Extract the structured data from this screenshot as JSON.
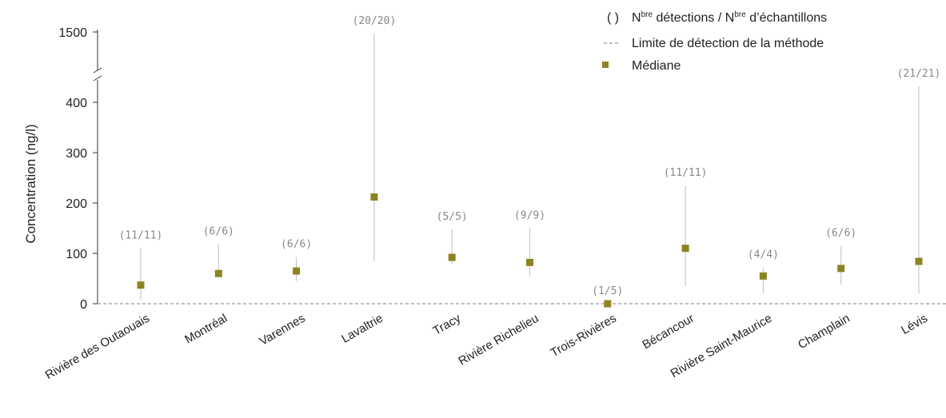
{
  "chart_data": {
    "type": "scatter",
    "ylabel": "Concentration (ng/l)",
    "yticks": [
      0,
      100,
      200,
      300,
      400,
      1500
    ],
    "y_axis_break": [
      400,
      1500
    ],
    "detection_limit": 0,
    "legend": {
      "paren_symbol": "( )",
      "entry_counts": {
        "n1": "N",
        "sup1": "bre",
        "mid": " détections / N",
        "sup2": "bre",
        "end": " d’échantillons"
      },
      "entry_limit": "Limite de détection de la méthode",
      "entry_median": "Médiane",
      "placement": "top-right"
    },
    "colors": {
      "median": "#8b8422",
      "range_line": "#c8c8c8",
      "limit_line": "#aaaaaa"
    },
    "sites": [
      {
        "name": "Rivière des Outaouais",
        "label": "(11/11)",
        "median": 37,
        "min": 8,
        "max": 110
      },
      {
        "name": "Montréal",
        "label": "(6/6)",
        "median": 60,
        "min": 58,
        "max": 118
      },
      {
        "name": "Varennes",
        "label": "(6/6)",
        "median": 65,
        "min": 45,
        "max": 93
      },
      {
        "name": "Lavaltrie",
        "label": "(20/20)",
        "median": 212,
        "min": 85,
        "max": 1500
      },
      {
        "name": "Tracy",
        "label": "(5/5)",
        "median": 92,
        "min": 80,
        "max": 148
      },
      {
        "name": "Rivière Richelieu",
        "label": "(9/9)",
        "median": 82,
        "min": 55,
        "max": 150
      },
      {
        "name": "Trois-Rivières",
        "label": "(1/5)",
        "median": 0,
        "min": 0,
        "max": 0
      },
      {
        "name": "Bécancour",
        "label": "(11/11)",
        "median": 110,
        "min": 35,
        "max": 235
      },
      {
        "name": "Rivière Saint-Maurice",
        "label": "(4/4)",
        "median": 55,
        "min": 20,
        "max": 72
      },
      {
        "name": "Champlain",
        "label": "(6/6)",
        "median": 70,
        "min": 38,
        "max": 115
      },
      {
        "name": "Lévis",
        "label": "(21/21)",
        "median": 84,
        "min": 20,
        "max": 430
      }
    ]
  }
}
